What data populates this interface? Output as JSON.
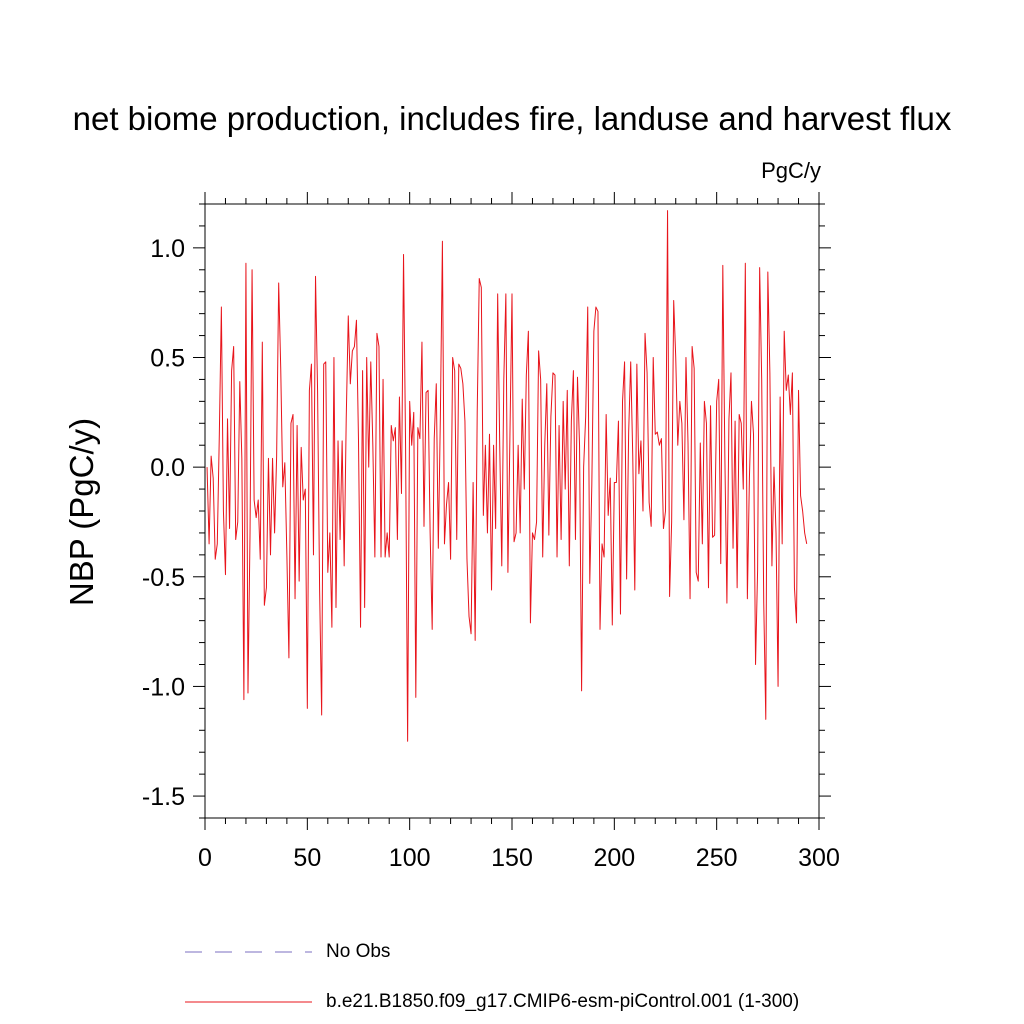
{
  "chart_data": {
    "type": "line",
    "title": "net biome production, includes fire, landuse and harvest flux",
    "units_label": "PgC/y",
    "xlabel": "",
    "ylabel": "NBP  (PgC/y)",
    "xlim": [
      0,
      300
    ],
    "ylim": [
      -1.6,
      1.2
    ],
    "xticks": [
      0,
      50,
      100,
      150,
      200,
      250,
      300
    ],
    "xtick_labels": [
      "0",
      "50",
      "100",
      "150",
      "200",
      "250",
      "300"
    ],
    "yticks": [
      -1.5,
      -1.0,
      -0.5,
      0.0,
      0.5,
      1.0
    ],
    "ytick_labels": [
      "-1.5",
      "-1.0",
      "-0.5",
      "0.0",
      "0.5",
      "1.0"
    ],
    "grid": false,
    "legend_position": "bottom",
    "legend": [
      {
        "label": "No Obs",
        "color": "#7b6fc0",
        "style": "dashed"
      },
      {
        "label": "b.e21.B1850.f09_g17.CMIP6-esm-piControl.001 (1-300)",
        "color": "#e8141b",
        "style": "solid"
      }
    ],
    "series": [
      {
        "name": "b.e21.B1850.f09_g17.CMIP6-esm-piControl.001 (1-300)",
        "color": "#e8141b",
        "x_start": 1,
        "x_step": 1,
        "values": [
          0.0,
          -0.35,
          0.05,
          -0.05,
          -0.42,
          -0.35,
          0.15,
          0.73,
          -0.2,
          -0.49,
          0.22,
          -0.28,
          0.44,
          0.55,
          -0.33,
          -0.25,
          0.39,
          0.04,
          -1.06,
          0.93,
          -1.03,
          -0.3,
          0.9,
          -0.15,
          -0.23,
          -0.15,
          -0.42,
          0.57,
          -0.63,
          -0.55,
          0.04,
          -0.4,
          0.04,
          -0.3,
          0.05,
          0.84,
          0.45,
          -0.09,
          0.02,
          -0.4,
          -0.87,
          0.2,
          0.24,
          -0.6,
          0.19,
          -0.52,
          0.09,
          -0.15,
          -0.1,
          -1.1,
          0.35,
          0.47,
          -0.4,
          0.87,
          0.35,
          -0.56,
          -1.13,
          0.47,
          0.48,
          -0.48,
          -0.3,
          -0.73,
          0.5,
          -0.64,
          0.12,
          -0.33,
          0.12,
          -0.45,
          0.22,
          0.69,
          0.38,
          0.53,
          0.55,
          0.67,
          0.12,
          -0.73,
          0.44,
          -0.64,
          0.5,
          0.0,
          0.48,
          0.1,
          -0.41,
          0.61,
          0.55,
          -0.41,
          0.4,
          -0.41,
          -0.3,
          -0.41,
          0.19,
          0.12,
          0.18,
          -0.33,
          0.32,
          -0.12,
          0.97,
          0.1,
          -1.25,
          0.3,
          0.1,
          0.25,
          -1.05,
          0.18,
          0.13,
          0.57,
          -0.27,
          0.34,
          0.35,
          -0.3,
          -0.74,
          0.13,
          0.38,
          -0.37,
          0.23,
          1.03,
          -0.35,
          -0.17,
          -0.07,
          -0.42,
          0.5,
          0.44,
          -0.33,
          0.47,
          0.45,
          0.38,
          0.21,
          -0.42,
          -0.68,
          -0.76,
          -0.07,
          -0.79,
          0.25,
          0.86,
          0.82,
          -0.22,
          0.1,
          -0.3,
          0.15,
          -0.56,
          0.1,
          -0.28,
          0.79,
          0.1,
          -0.45,
          0.4,
          0.79,
          -0.48,
          0.15,
          0.79,
          -0.34,
          -0.3,
          0.1,
          -0.3,
          0.31,
          -0.1,
          0.42,
          0.62,
          -0.71,
          -0.3,
          -0.33,
          -0.25,
          0.53,
          0.4,
          -0.41,
          0.1,
          0.38,
          -0.31,
          0.23,
          0.43,
          0.42,
          -0.41,
          0.19,
          -0.33,
          0.3,
          -0.1,
          0.35,
          -0.45,
          0.21,
          0.44,
          -0.33,
          0.41,
          0.1,
          -1.02,
          0.0,
          0.23,
          0.73,
          -0.53,
          -0.08,
          0.62,
          0.73,
          0.71,
          -0.74,
          -0.35,
          -0.41,
          0.24,
          -0.22,
          -0.05,
          -0.72,
          -0.07,
          -0.07,
          0.21,
          -0.67,
          0.3,
          0.48,
          -0.51,
          0.16,
          0.48,
          0.05,
          -0.56,
          0.47,
          -0.03,
          0.12,
          -0.2,
          0.61,
          0.43,
          -0.16,
          -0.27,
          0.5,
          0.15,
          0.16,
          0.1,
          0.13,
          -0.28,
          -0.2,
          1.17,
          -0.59,
          -0.25,
          0.76,
          0.5,
          0.1,
          0.3,
          0.2,
          -0.24,
          0.5,
          0.11,
          -0.6,
          0.55,
          0.45,
          -0.48,
          -0.52,
          0.11,
          -0.35,
          0.3,
          0.2,
          -0.55,
          0.28,
          -0.32,
          -0.31,
          0.3,
          0.4,
          -0.44,
          0.92,
          0.05,
          -0.62,
          0.22,
          0.43,
          -0.37,
          0.21,
          -0.55,
          0.24,
          0.2,
          -0.1,
          0.93,
          -0.6,
          -0.05,
          0.3,
          0.15,
          -0.9,
          -0.47,
          0.91,
          0.4,
          -0.62,
          -1.15,
          0.89,
          0.43,
          -0.45,
          0.0,
          -0.3,
          -1.0,
          0.32,
          -0.35,
          0.62,
          0.35,
          0.42,
          0.24,
          0.43,
          -0.55,
          -0.71,
          0.35,
          -0.13,
          -0.2,
          -0.3,
          -0.35
        ]
      }
    ]
  }
}
